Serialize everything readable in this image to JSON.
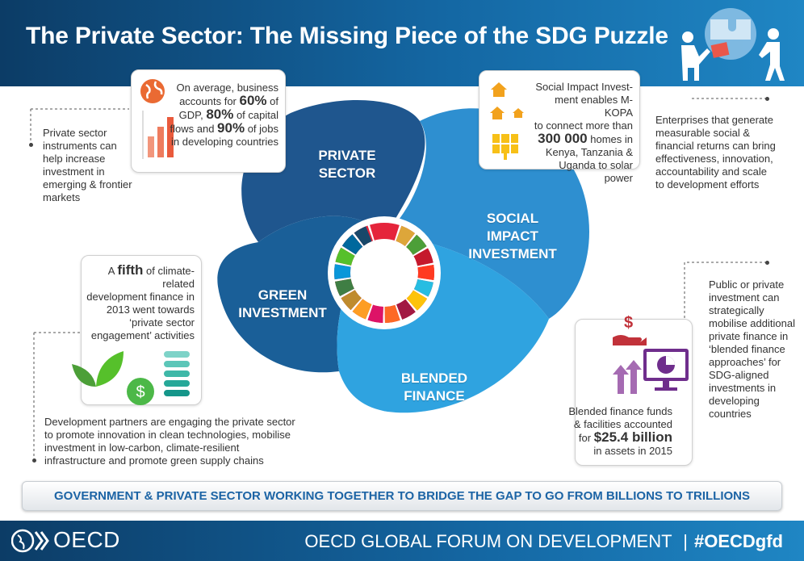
{
  "header": {
    "title": "The Private Sector: The Missing Piece of the SDG Puzzle"
  },
  "segments": {
    "private": [
      "PRIVATE",
      "SECTOR"
    ],
    "social": [
      "SOCIAL",
      "IMPACT",
      "INVESTMENT"
    ],
    "green": [
      "GREEN",
      "INVESTMENT"
    ],
    "blended": [
      "BLENDED",
      "FINANCE"
    ]
  },
  "callouts": {
    "private": {
      "l1": "On average, business",
      "l2a": "accounts for ",
      "l2b": "60%",
      "l2c": " of",
      "l3a": "GDP, ",
      "l3b": "80%",
      "l3c": " of capital",
      "l4a": "flows and ",
      "l4b": "90%",
      "l4c": " of jobs",
      "l5": "in developing countries"
    },
    "social": {
      "l1": "Social Impact Invest-",
      "l2": "ment enables M-KOPA",
      "l3": "to connect more than",
      "l4": "300 000",
      "l4b": " homes in",
      "l5": "Kenya, Tanzania &",
      "l6": "Uganda to solar power"
    },
    "green": {
      "l1a": "A ",
      "l1b": "fifth",
      "l1c": " of climate-related",
      "l2": "development finance in",
      "l3": "2013 went towards",
      "l4": "‘private sector",
      "l5": "engagement’ activities"
    },
    "blended": {
      "l1": "Blended finance funds",
      "l2": "& facilities accounted",
      "l3a": "for ",
      "l3b": "$25.4 billion",
      "l4": "in assets in 2015"
    }
  },
  "side_notes": {
    "left_top": [
      "Private sector",
      "instruments can",
      "help increase",
      "investment in",
      "emerging & frontier",
      "markets"
    ],
    "right_top": [
      "Enterprises that generate",
      "measurable social &",
      "financial returns can bring",
      "effectiveness, innovation,",
      "accountability and scale",
      "to development efforts"
    ],
    "right_mid": [
      "Public or private",
      "investment can",
      "strategically",
      "mobilise additional",
      "private finance in",
      "‘blended finance",
      "approaches’ for",
      "SDG-aligned",
      "investments in",
      "developing",
      "countries"
    ],
    "bottom_left": [
      "Development partners are engaging the private sector",
      "to promote innovation in clean technologies, mobilise",
      "investment in low-carbon, climate-resilient",
      "infrastructure and promote green supply chains"
    ]
  },
  "banner": "GOVERNMENT &  PRIVATE SECTOR WORKING TOGETHER TO BRIDGE THE GAP TO GO FROM BILLIONS TO TRILLIONS",
  "footer": {
    "logo": "OECD",
    "forum": "OECD GLOBAL FORUM ON DEVELOPMENT",
    "sep": "|",
    "hashtag": "#OECDgfd"
  },
  "colors": {
    "header": "#0c3c66",
    "private": "#1f568e",
    "social": "#2e8fd0",
    "green": "#1a5f98",
    "blended": "#2fa3e0",
    "accent": "#1c64a5"
  },
  "icons": [
    "globe-icon",
    "bar-chart-icon",
    "house-icon",
    "solar-panel-icon",
    "leaf-icon",
    "dollar-coin-icon",
    "stack-icon",
    "dollar-hand-icon",
    "growth-arrows-icon",
    "monitor-pie-chart-icon",
    "puzzle-people-icon",
    "oecd-logo-icon"
  ]
}
